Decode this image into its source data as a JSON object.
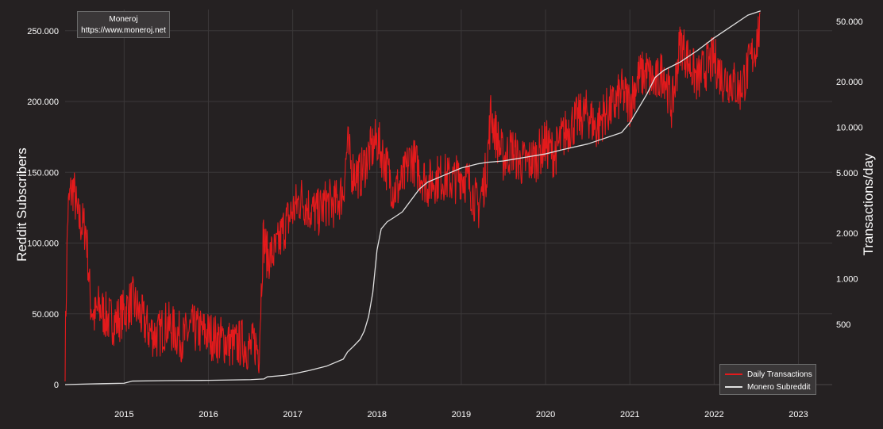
{
  "credit": {
    "line1": "Moneroj",
    "line2": "https://www.moneroj.net"
  },
  "chart_data": {
    "type": "line",
    "title": "",
    "grid": true,
    "legend_placement": "bottom-right",
    "background_color": "#252122",
    "xaxis": {
      "label": "",
      "range": [
        2014.3,
        2023.4
      ],
      "ticks": [
        2015,
        2016,
        2017,
        2018,
        2019,
        2020,
        2021,
        2022,
        2023
      ],
      "tick_labels": [
        "2015",
        "2016",
        "2017",
        "2018",
        "2019",
        "2020",
        "2021",
        "2022",
        "2023"
      ]
    },
    "yaxis_left": {
      "label": "Reddit Subscribers",
      "range": [
        0,
        265000
      ],
      "ticks": [
        0,
        50000,
        100000,
        150000,
        200000,
        250000
      ],
      "tick_labels": [
        "0",
        "50.000",
        "100.000",
        "150.000",
        "200.000",
        "250.000"
      ]
    },
    "yaxis_right": {
      "label": "Transactions/day",
      "scale": "log",
      "range": [
        200,
        60000
      ],
      "ticks": [
        500,
        1000,
        2000,
        5000,
        10000,
        20000,
        50000
      ],
      "tick_labels": [
        "500",
        "1.000",
        "2.000",
        "5.000",
        "10.000",
        "20.000",
        "50.000"
      ]
    },
    "series": [
      {
        "name": "Daily Transactions",
        "axis": "right",
        "color": "#e31a1c",
        "x": [
          2014.3,
          2014.33,
          2014.36,
          2014.4,
          2014.45,
          2014.5,
          2014.55,
          2014.6,
          2014.65,
          2014.7,
          2014.8,
          2014.9,
          2015.0,
          2015.1,
          2015.2,
          2015.3,
          2015.4,
          2015.5,
          2015.6,
          2015.7,
          2015.8,
          2015.9,
          2016.0,
          2016.1,
          2016.2,
          2016.3,
          2016.4,
          2016.5,
          2016.55,
          2016.6,
          2016.65,
          2016.7,
          2016.8,
          2016.9,
          2017.0,
          2017.1,
          2017.2,
          2017.3,
          2017.4,
          2017.5,
          2017.6,
          2017.65,
          2017.7,
          2017.8,
          2017.9,
          2018.0,
          2018.1,
          2018.2,
          2018.3,
          2018.4,
          2018.5,
          2018.6,
          2018.7,
          2018.8,
          2018.9,
          2019.0,
          2019.1,
          2019.2,
          2019.3,
          2019.35,
          2019.4,
          2019.5,
          2019.6,
          2019.7,
          2019.8,
          2019.9,
          2020.0,
          2020.1,
          2020.2,
          2020.3,
          2020.4,
          2020.5,
          2020.6,
          2020.7,
          2020.8,
          2020.9,
          2021.0,
          2021.1,
          2021.2,
          2021.3,
          2021.4,
          2021.5,
          2021.6,
          2021.7,
          2021.8,
          2021.9,
          2022.0,
          2022.1,
          2022.2,
          2022.3,
          2022.4,
          2022.5,
          2022.55
        ],
        "values": [
          300,
          2600,
          3600,
          4000,
          2500,
          2300,
          2100,
          700,
          550,
          650,
          550,
          520,
          600,
          720,
          560,
          450,
          420,
          500,
          450,
          400,
          470,
          450,
          430,
          400,
          390,
          360,
          380,
          340,
          380,
          330,
          1900,
          1400,
          1500,
          2200,
          2800,
          3400,
          2900,
          2700,
          3200,
          3100,
          3800,
          7800,
          5200,
          4800,
          6600,
          8200,
          5800,
          3800,
          4300,
          6400,
          5200,
          4200,
          4600,
          4700,
          4400,
          4900,
          4200,
          2900,
          5200,
          12500,
          9400,
          6200,
          7200,
          5800,
          5900,
          6400,
          7900,
          6600,
          8600,
          10400,
          11500,
          12500,
          9800,
          12500,
          13500,
          17000,
          14500,
          21500,
          23000,
          19000,
          24000,
          13500,
          37000,
          27000,
          20500,
          25000,
          28000,
          21000,
          20500,
          17500,
          24000,
          36000,
          48000
        ]
      },
      {
        "name": "Monero Subreddit",
        "axis": "left",
        "color": "#e0e0e0",
        "x": [
          2014.3,
          2014.6,
          2015.0,
          2015.1,
          2015.5,
          2016.0,
          2016.5,
          2016.66,
          2016.7,
          2016.9,
          2017.0,
          2017.2,
          2017.4,
          2017.6,
          2017.65,
          2017.72,
          2017.8,
          2017.85,
          2017.9,
          2017.95,
          2018.0,
          2018.05,
          2018.12,
          2018.2,
          2018.3,
          2018.4,
          2018.5,
          2018.6,
          2018.8,
          2019.0,
          2019.2,
          2019.3,
          2019.5,
          2019.6,
          2019.8,
          2020.0,
          2020.2,
          2020.5,
          2020.7,
          2020.9,
          2021.0,
          2021.2,
          2021.3,
          2021.4,
          2021.6,
          2021.8,
          2022.0,
          2022.2,
          2022.4,
          2022.55
        ],
        "values": [
          0,
          500,
          1000,
          2500,
          2800,
          3000,
          3500,
          4000,
          5500,
          6500,
          7500,
          10000,
          13000,
          18000,
          23000,
          27000,
          32000,
          38000,
          48000,
          65000,
          95000,
          110000,
          115000,
          118000,
          122000,
          130000,
          138000,
          143000,
          148000,
          153000,
          156000,
          157000,
          158000,
          159000,
          161000,
          163000,
          166000,
          170000,
          174000,
          178000,
          185000,
          205000,
          217000,
          222000,
          228000,
          236000,
          245000,
          253000,
          261000,
          264000
        ]
      }
    ]
  }
}
